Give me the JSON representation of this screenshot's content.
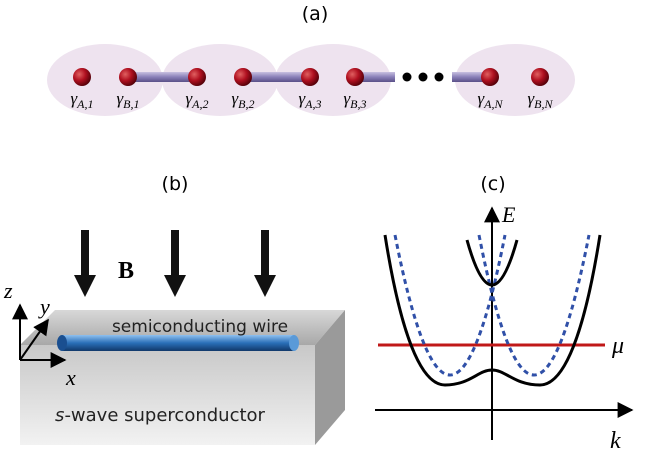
{
  "panel_a": {
    "label": "(a)",
    "sites": [
      {
        "symbol": "γ",
        "subscript": "A,1"
      },
      {
        "symbol": "γ",
        "subscript": "B,1"
      },
      {
        "symbol": "γ",
        "subscript": "A,2"
      },
      {
        "symbol": "γ",
        "subscript": "B,2"
      },
      {
        "symbol": "γ",
        "subscript": "A,3"
      },
      {
        "symbol": "γ",
        "subscript": "B,3"
      },
      {
        "symbol": "γ",
        "subscript": "A,N"
      },
      {
        "symbol": "γ",
        "subscript": "B,N"
      }
    ]
  },
  "panel_b": {
    "label": "(b)",
    "field": "B",
    "wire": "semiconducting wire",
    "substrate_prefix": "s",
    "substrate": "-wave superconductor",
    "axes": {
      "z": "z",
      "y": "y",
      "x": "x"
    }
  },
  "panel_c": {
    "label": "(c)",
    "y_axis": "E",
    "x_axis": "k",
    "chemical_potential": "μ"
  }
}
